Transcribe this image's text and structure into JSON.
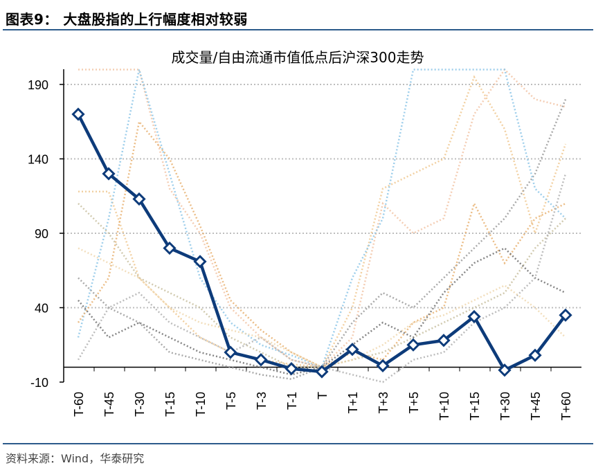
{
  "figure": {
    "title": "图表9：  大盘股指的上行幅度相对较弱",
    "source": "资料来源：Wind，华泰研究"
  },
  "chart_data": {
    "type": "line",
    "title": "成交量/自由流通市值低点后沪深300走势",
    "categories": [
      "T-60",
      "T-45",
      "T-30",
      "T-15",
      "T-10",
      "T-5",
      "T-3",
      "T-1",
      "T",
      "T+1",
      "T+3",
      "T+5",
      "T+10",
      "T+15",
      "T+30",
      "T+45",
      "T+60"
    ],
    "ylim": [
      -10,
      200
    ],
    "yticks": [
      -10,
      40,
      90,
      140,
      190
    ],
    "grid": true,
    "series": [
      {
        "values": [
          170,
          130,
          113,
          80,
          71,
          10,
          5,
          -1,
          -3,
          12,
          1,
          15,
          18,
          34,
          -2,
          8,
          35
        ],
        "color": "#0d3b7a",
        "highlight": true
      },
      {
        "values": [
          118,
          118,
          60,
          40,
          20,
          10,
          5,
          2,
          0,
          40,
          120,
          130,
          140,
          195,
          160,
          90,
          150
        ],
        "color": "#f0c890"
      },
      {
        "values": [
          200,
          200,
          200,
          120,
          90,
          40,
          20,
          5,
          0,
          20,
          110,
          90,
          100,
          170,
          200,
          180,
          175
        ],
        "color": "#f2c4a6"
      },
      {
        "values": [
          60,
          40,
          30,
          10,
          5,
          0,
          -5,
          -8,
          0,
          30,
          50,
          40,
          60,
          80,
          100,
          130,
          180
        ],
        "color": "#9a9a9a"
      },
      {
        "values": [
          20,
          100,
          200,
          130,
          60,
          30,
          15,
          8,
          0,
          60,
          100,
          200,
          200,
          200,
          200,
          120,
          100
        ],
        "color": "#8cc6e8"
      },
      {
        "values": [
          30,
          60,
          165,
          140,
          95,
          45,
          25,
          10,
          0,
          10,
          5,
          30,
          40,
          110,
          70,
          100,
          110
        ],
        "color": "#e8b070"
      },
      {
        "values": [
          110,
          90,
          60,
          50,
          40,
          20,
          10,
          0,
          0,
          5,
          10,
          20,
          30,
          40,
          50,
          80,
          100
        ],
        "color": "#c8c0a0"
      },
      {
        "values": [
          45,
          20,
          30,
          20,
          10,
          5,
          0,
          -5,
          0,
          15,
          30,
          20,
          50,
          70,
          80,
          60,
          50
        ],
        "color": "#707070"
      },
      {
        "values": [
          5,
          40,
          50,
          30,
          20,
          10,
          20,
          5,
          0,
          -5,
          -10,
          5,
          10,
          30,
          40,
          60,
          130
        ],
        "color": "#b0b0b0"
      },
      {
        "values": [
          80,
          70,
          60,
          40,
          30,
          25,
          20,
          10,
          0,
          5,
          15,
          30,
          35,
          45,
          55,
          40,
          20
        ],
        "color": "#f0d8b0"
      }
    ]
  }
}
